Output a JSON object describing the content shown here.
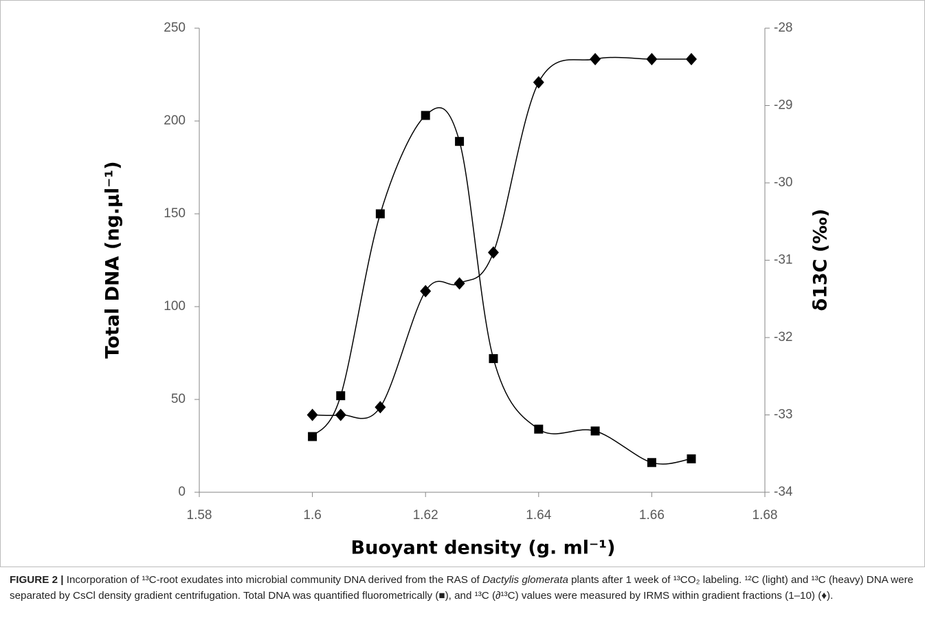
{
  "chart_data": {
    "type": "line",
    "smooth": true,
    "x": [
      1.6,
      1.605,
      1.612,
      1.62,
      1.626,
      1.632,
      1.64,
      1.65,
      1.66,
      1.667
    ],
    "series": [
      {
        "marker": "square",
        "color": "#000000",
        "values": [
          30,
          52,
          150,
          203,
          189,
          72,
          34,
          33,
          16,
          18
        ]
      },
      {
        "marker": "diamond",
        "color": "#000000",
        "axis": "y2",
        "values": [
          -33.0,
          -33.0,
          -32.9,
          -31.4,
          -31.3,
          -30.9,
          -28.7,
          -28.4,
          -28.4,
          -28.4
        ]
      }
    ],
    "xlabel": "Buoyant density (g. ml⁻¹)",
    "ylabel": "Total DNA (ng.µl⁻¹)",
    "y2label": "δ13C (‰)",
    "xlim": [
      1.58,
      1.68
    ],
    "xticks": [
      1.58,
      1.6,
      1.62,
      1.64,
      1.66,
      1.68
    ],
    "ylim": [
      0,
      250
    ],
    "yticks": [
      0,
      50,
      100,
      150,
      200,
      250
    ],
    "y2lim": [
      -34,
      -28
    ],
    "y2ticks": [
      -34,
      -33,
      -32,
      -31,
      -30,
      -29,
      -28
    ],
    "grid": false
  },
  "caption": {
    "label": "FIGURE 2 |",
    "text": [
      "Incorporation of ¹³C-root exudates into microbial community DNA derived from the RAS of ",
      "Dactylis glomerata",
      " plants after 1 week of ¹³CO₂ labeling. ¹²C (light) and ¹³C (heavy) DNA were separated by CsCl density gradient centrifugation. Total DNA was quantified fluorometrically (■), and ¹³C (∂¹³C) values were measured by IRMS within gradient fractions (1–10) (♦)."
    ]
  }
}
